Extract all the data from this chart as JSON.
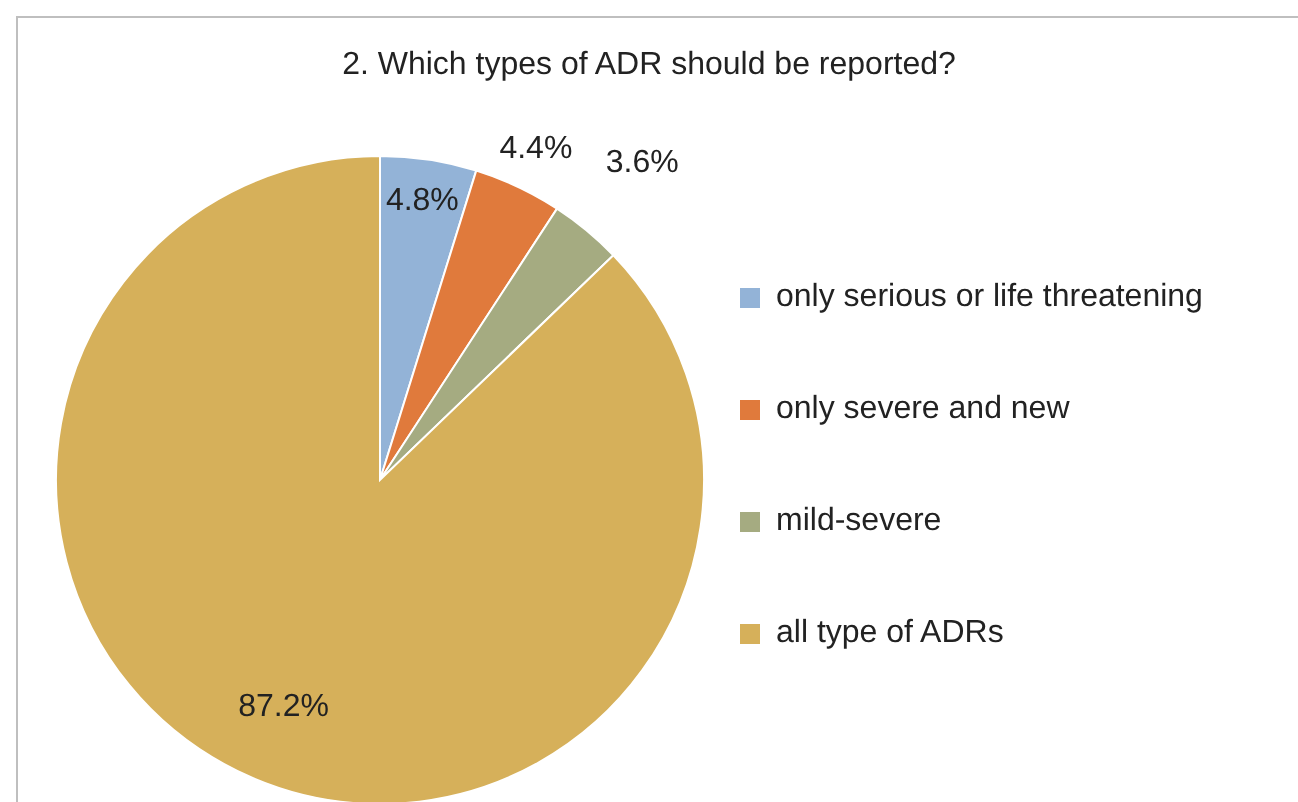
{
  "chart_data": {
    "type": "pie",
    "title": "2. Which types of ADR should be reported?",
    "categories": [
      "only serious or life threatening",
      "only severe and new",
      "mild-severe",
      "all type of ADRs"
    ],
    "values": [
      4.8,
      4.4,
      3.6,
      87.2
    ],
    "value_labels": [
      "4.8%",
      "4.4%",
      "3.6%",
      "87.2%"
    ],
    "colors": [
      "#93b3d7",
      "#e07a3c",
      "#a5ab81",
      "#d6b05a"
    ],
    "legend": "right"
  }
}
